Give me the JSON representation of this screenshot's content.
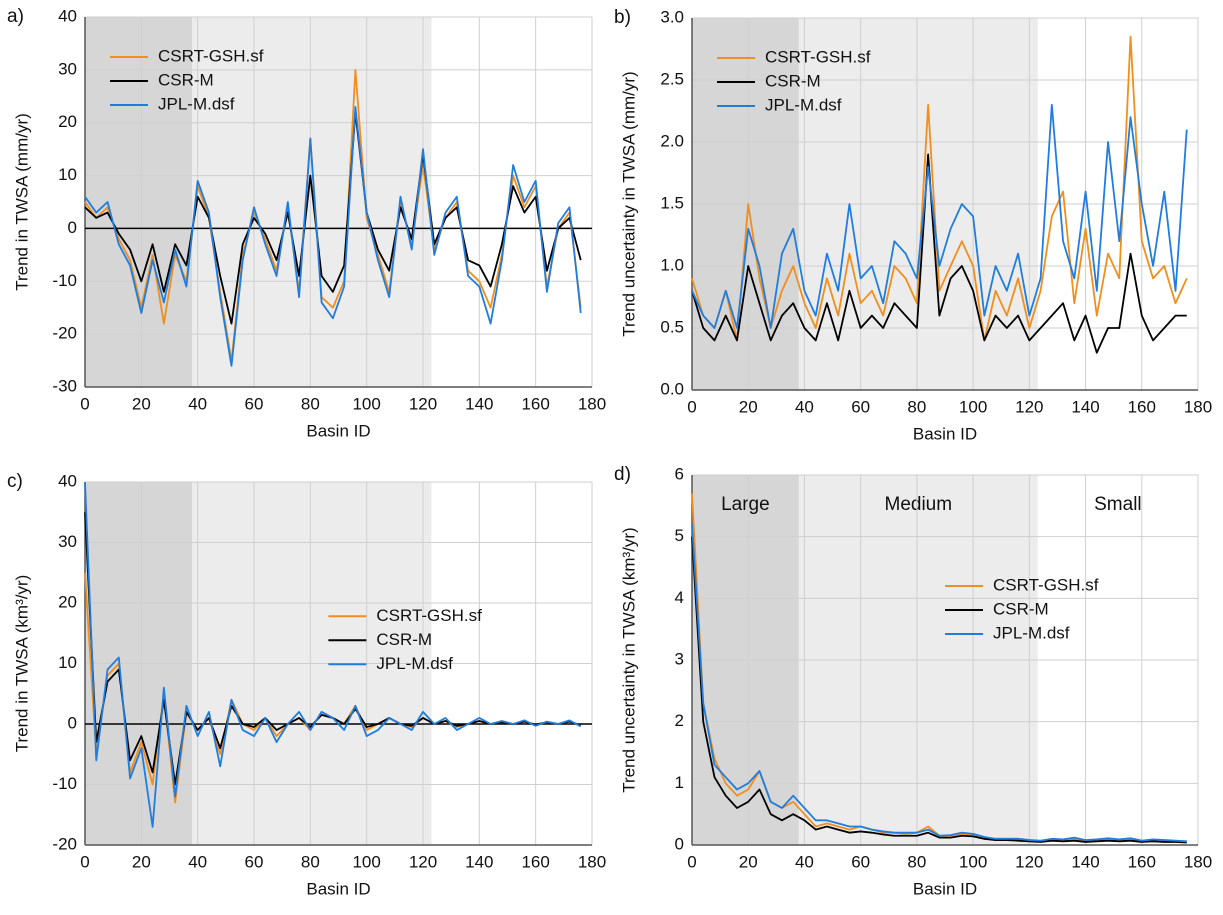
{
  "chart_data": [
    {
      "type": "line",
      "panel_label": "a)",
      "y_label": "Trend in TWSA (mm/yr)",
      "x_label": "Basin ID",
      "x": [
        0,
        4,
        8,
        12,
        16,
        20,
        24,
        28,
        32,
        36,
        40,
        44,
        48,
        52,
        56,
        60,
        64,
        68,
        72,
        76,
        80,
        84,
        88,
        92,
        96,
        100,
        104,
        108,
        112,
        116,
        120,
        124,
        128,
        132,
        136,
        140,
        144,
        148,
        152,
        156,
        160,
        164,
        168,
        172,
        176
      ],
      "series": [
        {
          "name": "CSRT-GSH.sf",
          "color": "#f28e1c",
          "values": [
            5,
            2,
            4,
            -2,
            -6,
            -15,
            -5,
            -18,
            -5,
            -10,
            8,
            2,
            -12,
            -25,
            -5,
            3,
            -2,
            -8,
            4,
            -12,
            17,
            -13,
            -15,
            -10,
            30,
            2,
            -5,
            -12,
            5,
            -3,
            12,
            -4,
            2,
            5,
            -8,
            -10,
            -15,
            -5,
            10,
            4,
            8,
            -11,
            0,
            3,
            -15
          ]
        },
        {
          "name": "CSR-M",
          "color": "#000000",
          "values": [
            4,
            2,
            3,
            -1,
            -4,
            -10,
            -3,
            -12,
            -3,
            -7,
            6,
            2,
            -9,
            -18,
            -3,
            2,
            -1,
            -6,
            3,
            -9,
            10,
            -9,
            -12,
            -7,
            22,
            3,
            -4,
            -8,
            4,
            -2,
            14,
            -3,
            2,
            4,
            -6,
            -7,
            -11,
            -3,
            8,
            3,
            6,
            -8,
            0,
            2,
            -6
          ]
        },
        {
          "name": "JPL-M.dsf",
          "color": "#1f7de0",
          "values": [
            6,
            3,
            5,
            -3,
            -7,
            -16,
            -6,
            -14,
            -4,
            -11,
            9,
            3,
            -13,
            -26,
            -6,
            4,
            -3,
            -9,
            5,
            -13,
            17,
            -14,
            -17,
            -11,
            23,
            3,
            -6,
            -13,
            6,
            -4,
            15,
            -5,
            3,
            6,
            -9,
            -11,
            -18,
            -6,
            12,
            5,
            9,
            -12,
            1,
            4,
            -16
          ]
        }
      ],
      "xlim": [
        0,
        180
      ],
      "xticks": [
        0,
        20,
        40,
        60,
        80,
        100,
        120,
        140,
        160,
        180
      ],
      "ylim": [
        -30,
        40
      ],
      "yticks": [
        -30,
        -20,
        -10,
        0,
        10,
        20,
        30,
        40
      ],
      "grid": true,
      "zero_line": true,
      "legend_position": "upper left",
      "regions": [
        {
          "start": 0,
          "end": 38,
          "color": "#d6d6d6"
        },
        {
          "start": 38,
          "end": 123,
          "color": "#ececec"
        }
      ]
    },
    {
      "type": "line",
      "panel_label": "b)",
      "y_label": "Trend uncertainty in TWSA (mm/yr)",
      "x_label": "Basin ID",
      "x": [
        0,
        4,
        8,
        12,
        16,
        20,
        24,
        28,
        32,
        36,
        40,
        44,
        48,
        52,
        56,
        60,
        64,
        68,
        72,
        76,
        80,
        84,
        88,
        92,
        96,
        100,
        104,
        108,
        112,
        116,
        120,
        124,
        128,
        132,
        136,
        140,
        144,
        148,
        152,
        156,
        160,
        164,
        168,
        172,
        176
      ],
      "series": [
        {
          "name": "CSRT-GSH.sf",
          "color": "#f28e1c",
          "values": [
            0.9,
            0.6,
            0.5,
            0.8,
            0.4,
            1.5,
            0.9,
            0.5,
            0.8,
            1.0,
            0.7,
            0.5,
            0.9,
            0.6,
            1.1,
            0.7,
            0.8,
            0.6,
            1.0,
            0.9,
            0.7,
            2.3,
            0.8,
            1.0,
            1.2,
            1.0,
            0.4,
            0.8,
            0.6,
            0.9,
            0.5,
            0.8,
            1.4,
            1.6,
            0.7,
            1.3,
            0.6,
            1.1,
            0.9,
            2.85,
            1.2,
            0.9,
            1.0,
            0.7,
            0.9
          ]
        },
        {
          "name": "CSR-M",
          "color": "#000000",
          "values": [
            0.8,
            0.5,
            0.4,
            0.6,
            0.4,
            1.0,
            0.7,
            0.4,
            0.6,
            0.7,
            0.5,
            0.4,
            0.7,
            0.4,
            0.8,
            0.5,
            0.6,
            0.5,
            0.7,
            0.6,
            0.5,
            1.9,
            0.6,
            0.9,
            1.0,
            0.8,
            0.4,
            0.6,
            0.5,
            0.6,
            0.4,
            0.5,
            0.6,
            0.7,
            0.4,
            0.6,
            0.3,
            0.5,
            0.5,
            1.1,
            0.6,
            0.4,
            0.5,
            0.6,
            0.6
          ]
        },
        {
          "name": "JPL-M.dsf",
          "color": "#1f7de0",
          "values": [
            0.8,
            0.6,
            0.5,
            0.8,
            0.5,
            1.3,
            1.0,
            0.5,
            1.1,
            1.3,
            0.8,
            0.6,
            1.1,
            0.8,
            1.5,
            0.9,
            1.0,
            0.7,
            1.2,
            1.1,
            0.9,
            1.8,
            1.0,
            1.3,
            1.5,
            1.4,
            0.6,
            1.0,
            0.8,
            1.1,
            0.6,
            0.9,
            2.3,
            1.2,
            0.9,
            1.6,
            0.8,
            2.0,
            1.2,
            2.2,
            1.5,
            1.0,
            1.6,
            0.8,
            2.1
          ]
        }
      ],
      "xlim": [
        0,
        180
      ],
      "xticks": [
        0,
        20,
        40,
        60,
        80,
        100,
        120,
        140,
        160,
        180
      ],
      "ylim": [
        0,
        3
      ],
      "yticks": [
        {
          "value": 0,
          "label": "0.0"
        },
        0.5,
        {
          "value": 1,
          "label": "1.0"
        },
        1.5,
        {
          "value": 2,
          "label": "2.0"
        },
        2.5,
        {
          "value": 3,
          "label": "3.0"
        }
      ],
      "grid": true,
      "zero_line": false,
      "legend_position": "upper left",
      "regions": [
        {
          "start": 0,
          "end": 38,
          "color": "#d6d6d6"
        },
        {
          "start": 38,
          "end": 123,
          "color": "#ececec"
        }
      ]
    },
    {
      "type": "line",
      "panel_label": "c)",
      "y_label": "Trend in TWSA (km³/yr)",
      "x_label": "Basin ID",
      "x": [
        0,
        4,
        8,
        12,
        16,
        20,
        24,
        28,
        32,
        36,
        40,
        44,
        48,
        52,
        56,
        60,
        64,
        68,
        72,
        76,
        80,
        84,
        88,
        92,
        96,
        100,
        104,
        108,
        112,
        116,
        120,
        124,
        128,
        132,
        136,
        140,
        144,
        148,
        152,
        156,
        160,
        164,
        168,
        172,
        176
      ],
      "series": [
        {
          "name": "CSRT-GSH.sf",
          "color": "#f28e1c",
          "values": [
            25,
            -5,
            8,
            10,
            -8,
            -3,
            -10,
            5,
            -13,
            2,
            -1,
            1,
            -5,
            4,
            0,
            -1,
            1,
            -2,
            0,
            1,
            -1,
            2,
            1,
            0,
            3,
            -1,
            0,
            1,
            0,
            -0.5,
            1,
            0,
            0.5,
            -0.5,
            0,
            0.5,
            0,
            0.3,
            0,
            0.5,
            -0.2,
            0.3,
            0,
            0.5,
            -0.3
          ]
        },
        {
          "name": "CSR-M",
          "color": "#000000",
          "values": [
            35,
            -3,
            7,
            9,
            -6,
            -2,
            -8,
            4,
            -10,
            2,
            -1,
            1,
            -4,
            3,
            0,
            -0.5,
            1,
            -1,
            0,
            1,
            -0.5,
            1.5,
            1,
            0,
            2.5,
            -0.5,
            0,
            1,
            0,
            -0.3,
            1,
            0,
            0.5,
            -0.3,
            0,
            0.5,
            0,
            0.3,
            0,
            0.4,
            -0.1,
            0.3,
            0,
            0.4,
            -0.2
          ]
        },
        {
          "name": "JPL-M.dsf",
          "color": "#1f7de0",
          "values": [
            40,
            -6,
            9,
            11,
            -9,
            -4,
            -17,
            6,
            -12,
            3,
            -2,
            2,
            -7,
            4,
            -1,
            -2,
            1,
            -3,
            0,
            2,
            -1,
            2,
            1,
            -1,
            3,
            -2,
            -1,
            1,
            0,
            -1,
            2,
            0,
            1,
            -1,
            0,
            1,
            0,
            0.5,
            0,
            0.6,
            -0.3,
            0.4,
            0,
            0.6,
            -0.4
          ]
        }
      ],
      "xlim": [
        0,
        180
      ],
      "xticks": [
        0,
        20,
        40,
        60,
        80,
        100,
        120,
        140,
        160,
        180
      ],
      "ylim": [
        -20,
        40
      ],
      "yticks": [
        -20,
        -10,
        0,
        10,
        20,
        30,
        40
      ],
      "grid": true,
      "zero_line": true,
      "legend_position": "center",
      "regions": [
        {
          "start": 0,
          "end": 38,
          "color": "#d6d6d6"
        },
        {
          "start": 38,
          "end": 123,
          "color": "#ececec"
        }
      ]
    },
    {
      "type": "line",
      "panel_label": "d)",
      "y_label": "Trend uncertainty in TWSA (km³/yr)",
      "x_label": "Basin ID",
      "x": [
        0,
        4,
        8,
        12,
        16,
        20,
        24,
        28,
        32,
        36,
        40,
        44,
        48,
        52,
        56,
        60,
        64,
        68,
        72,
        76,
        80,
        84,
        88,
        92,
        96,
        100,
        104,
        108,
        112,
        116,
        120,
        124,
        128,
        132,
        136,
        140,
        144,
        148,
        152,
        156,
        160,
        164,
        168,
        172,
        176
      ],
      "series": [
        {
          "name": "CSRT-GSH.sf",
          "color": "#f28e1c",
          "values": [
            5.7,
            2.3,
            1.4,
            1.0,
            0.8,
            0.9,
            1.2,
            0.7,
            0.6,
            0.7,
            0.5,
            0.3,
            0.35,
            0.3,
            0.25,
            0.3,
            0.25,
            0.2,
            0.2,
            0.18,
            0.2,
            0.3,
            0.15,
            0.15,
            0.18,
            0.17,
            0.12,
            0.1,
            0.1,
            0.1,
            0.08,
            0.06,
            0.1,
            0.08,
            0.1,
            0.07,
            0.08,
            0.1,
            0.08,
            0.1,
            0.06,
            0.08,
            0.07,
            0.06,
            0.05
          ]
        },
        {
          "name": "CSR-M",
          "color": "#000000",
          "values": [
            5.0,
            2.0,
            1.1,
            0.8,
            0.6,
            0.7,
            0.9,
            0.5,
            0.4,
            0.5,
            0.4,
            0.25,
            0.3,
            0.25,
            0.2,
            0.22,
            0.2,
            0.17,
            0.15,
            0.15,
            0.15,
            0.2,
            0.12,
            0.12,
            0.15,
            0.14,
            0.1,
            0.08,
            0.08,
            0.07,
            0.06,
            0.05,
            0.07,
            0.06,
            0.07,
            0.05,
            0.06,
            0.07,
            0.06,
            0.07,
            0.05,
            0.06,
            0.05,
            0.05,
            0.04
          ]
        },
        {
          "name": "JPL-M.dsf",
          "color": "#1f7de0",
          "values": [
            5.2,
            2.3,
            1.3,
            1.1,
            0.9,
            1.0,
            1.2,
            0.7,
            0.6,
            0.8,
            0.6,
            0.4,
            0.4,
            0.35,
            0.3,
            0.3,
            0.25,
            0.22,
            0.2,
            0.2,
            0.2,
            0.25,
            0.15,
            0.16,
            0.2,
            0.18,
            0.13,
            0.1,
            0.1,
            0.1,
            0.08,
            0.07,
            0.1,
            0.09,
            0.12,
            0.08,
            0.09,
            0.11,
            0.09,
            0.11,
            0.07,
            0.09,
            0.08,
            0.07,
            0.06
          ]
        }
      ],
      "xlim": [
        0,
        180
      ],
      "xticks": [
        0,
        20,
        40,
        60,
        80,
        100,
        120,
        140,
        160,
        180
      ],
      "ylim": [
        0,
        6
      ],
      "yticks": [
        0,
        1,
        2,
        3,
        4,
        5,
        6
      ],
      "grid": true,
      "zero_line": false,
      "legend_position": "center right",
      "regions": [
        {
          "start": 0,
          "end": 38,
          "color": "#d6d6d6",
          "label": "Large"
        },
        {
          "start": 38,
          "end": 123,
          "color": "#ececec",
          "label": "Medium"
        },
        {
          "start": 123,
          "end": 180,
          "color": "#ffffff",
          "label": "Small"
        }
      ]
    }
  ]
}
